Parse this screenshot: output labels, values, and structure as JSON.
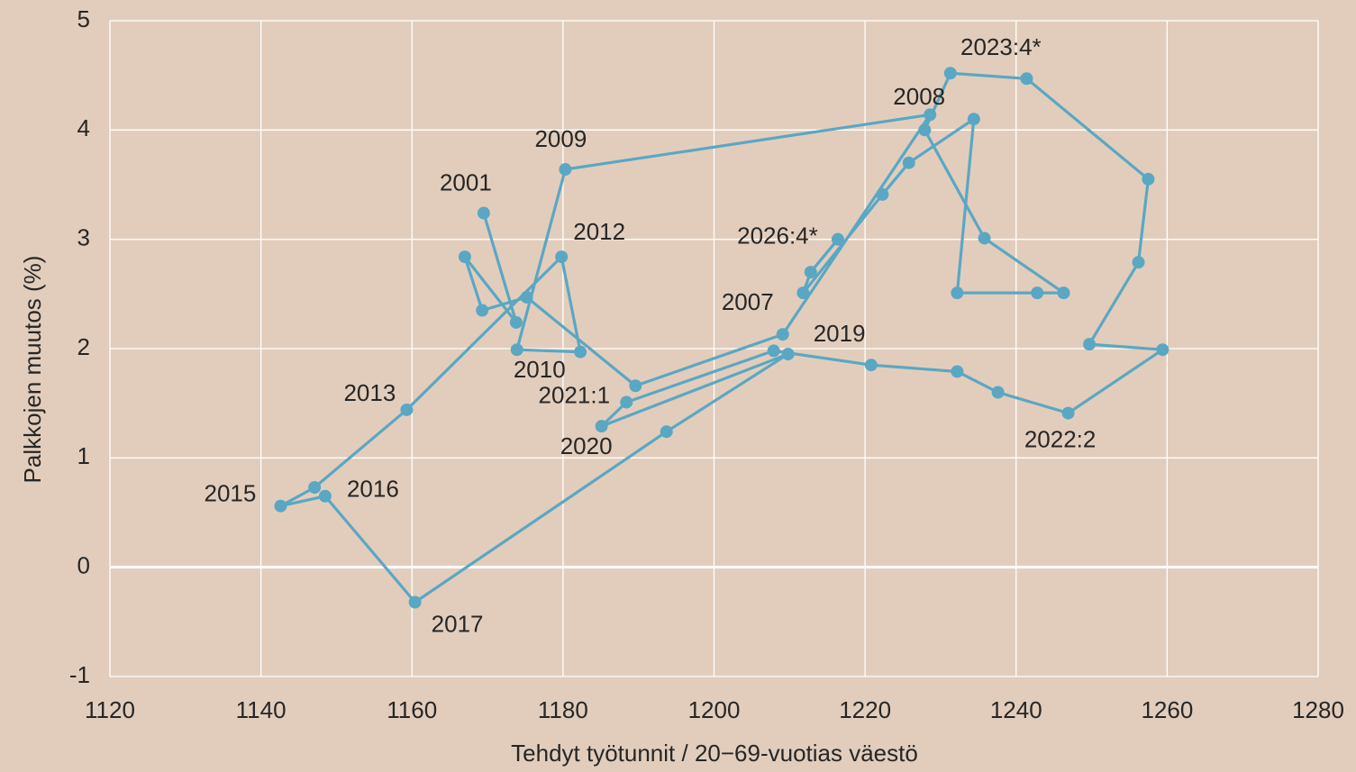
{
  "chart_data": {
    "type": "scatter",
    "x_label": "Tehdyt työtunnit / 20−69-vuotias väestö",
    "y_label": "Palkkojen muutos (%)",
    "xlim": [
      1120,
      1280
    ],
    "ylim": [
      -1,
      5
    ],
    "xticks": [
      1120,
      1140,
      1160,
      1180,
      1200,
      1220,
      1240,
      1260,
      1280
    ],
    "yticks": [
      -1,
      0,
      1,
      2,
      3,
      4,
      5
    ],
    "grid": true,
    "color": "#5aa7c4",
    "connected": true,
    "x": [
      1169.5,
      1173.8,
      1167.0,
      1169.3,
      1175.2,
      1189.6,
      1209.1,
      1228.6,
      1180.3,
      1173.9,
      1182.3,
      1179.8,
      1159.3,
      1147.1,
      1142.6,
      1148.5,
      1160.4,
      1193.7,
      1209.8,
      1185.1,
      1188.4,
      1207.9,
      1220.8,
      1232.2,
      1237.6,
      1246.9,
      1259.4,
      1249.7,
      1256.2,
      1257.5,
      1241.4,
      1231.3,
      1227.9,
      1235.8,
      1246.3,
      1242.8,
      1232.2,
      1234.4,
      1225.8,
      1222.3,
      1211.8,
      1212.8,
      1216.4
    ],
    "values": [
      3.24,
      2.24,
      2.84,
      2.35,
      2.47,
      1.66,
      2.13,
      4.14,
      3.64,
      1.99,
      1.97,
      2.84,
      1.44,
      0.73,
      0.56,
      0.65,
      -0.32,
      1.24,
      1.95,
      1.29,
      1.51,
      1.98,
      1.85,
      1.79,
      1.6,
      1.41,
      1.99,
      2.04,
      2.79,
      3.55,
      4.47,
      4.52,
      4.0,
      3.01,
      2.51,
      2.51,
      2.51,
      4.1,
      3.7,
      3.41,
      2.51,
      2.7,
      3.0
    ],
    "labels": [
      "2001",
      null,
      null,
      null,
      null,
      null,
      "2007",
      "2008",
      "2009",
      "2010",
      null,
      "2012",
      "2013",
      null,
      "2015",
      "2016",
      "2017",
      null,
      "2019",
      "2020",
      "2021:1",
      null,
      null,
      null,
      null,
      "2022:2",
      null,
      null,
      null,
      null,
      null,
      "2023:4*",
      null,
      null,
      null,
      null,
      null,
      null,
      null,
      null,
      null,
      null,
      "2026:4*"
    ]
  }
}
